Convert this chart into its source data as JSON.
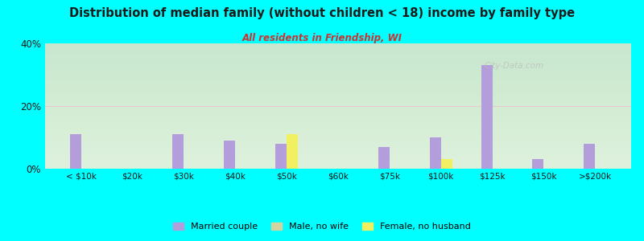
{
  "title": "Distribution of median family (without children < 18) income by family type",
  "subtitle": "All residents in Friendship, WI",
  "title_color": "#1a1a1a",
  "subtitle_color": "#cc3333",
  "background_color": "#00ffff",
  "plot_bg_top": "#e8f5e8",
  "plot_bg_bottom": "#f5fff5",
  "categories": [
    "< $10k",
    "$20k",
    "$30k",
    "$40k",
    "$50k",
    "$60k",
    "$75k",
    "$100k",
    "$125k",
    "$150k",
    ">$200k"
  ],
  "married_couple": [
    11,
    0,
    11,
    9,
    8,
    0,
    7,
    10,
    33,
    3,
    8
  ],
  "male_no_wife": [
    0,
    0,
    0,
    0,
    0,
    0,
    0,
    0,
    0,
    0,
    0
  ],
  "female_no_husband": [
    0,
    0,
    0,
    0,
    11,
    0,
    0,
    3,
    0,
    0,
    0
  ],
  "married_color": "#b39ddb",
  "male_color": "#d4d4a0",
  "female_color": "#f0f060",
  "ylim": [
    0,
    40
  ],
  "yticks": [
    0,
    20,
    40
  ],
  "ytick_labels": [
    "0%",
    "20%",
    "40%"
  ],
  "gridline_color": "#e8c8d0",
  "bar_width": 0.22,
  "legend_labels": [
    "Married couple",
    "Male, no wife",
    "Female, no husband"
  ],
  "watermark": "City-Data.com"
}
